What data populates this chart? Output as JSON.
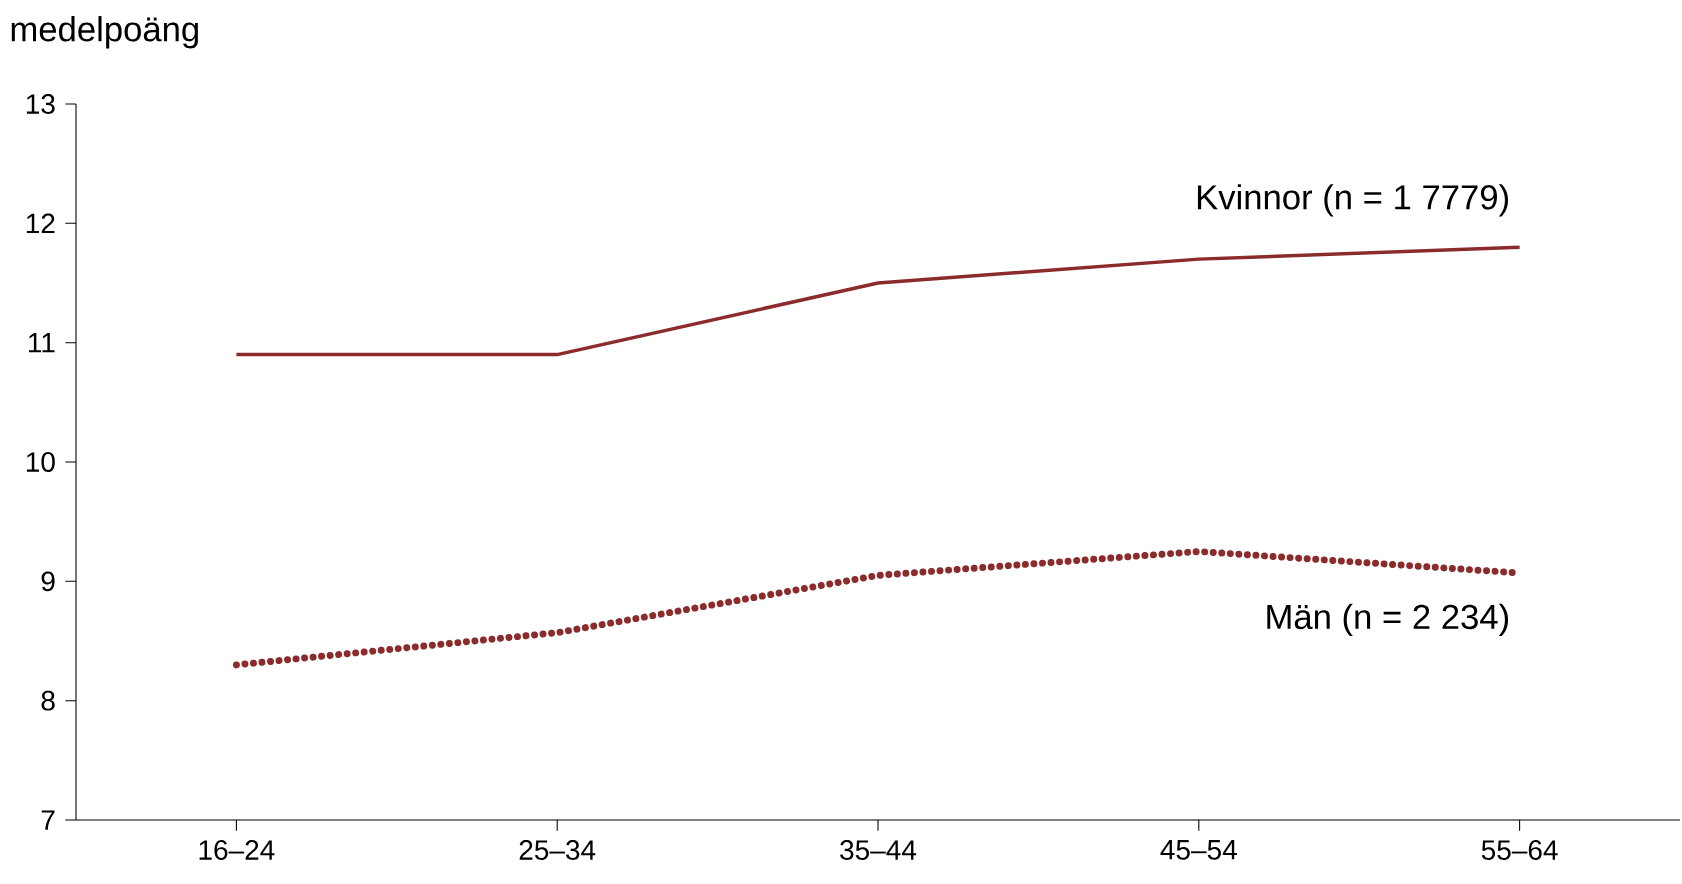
{
  "chart_data": {
    "type": "line",
    "ylabel": "medelpoäng",
    "categories": [
      "16–24",
      "25–34",
      "35–44",
      "45–54",
      "55–64"
    ],
    "series": [
      {
        "name": "Kvinnor (n = 1 7779)",
        "color": "#8b2b2b",
        "line_style": "solid",
        "values": [
          10.9,
          10.9,
          11.5,
          11.7,
          11.8
        ]
      },
      {
        "name": "Män (n = 2 234)",
        "color": "#8b2b2b",
        "line_style": "dotted",
        "values": [
          8.3,
          8.57,
          9.05,
          9.25,
          9.07
        ]
      }
    ],
    "ylim": [
      7,
      13
    ],
    "yticks": [
      7,
      8,
      9,
      10,
      11,
      12,
      13
    ],
    "grid": false,
    "marker": "none"
  }
}
